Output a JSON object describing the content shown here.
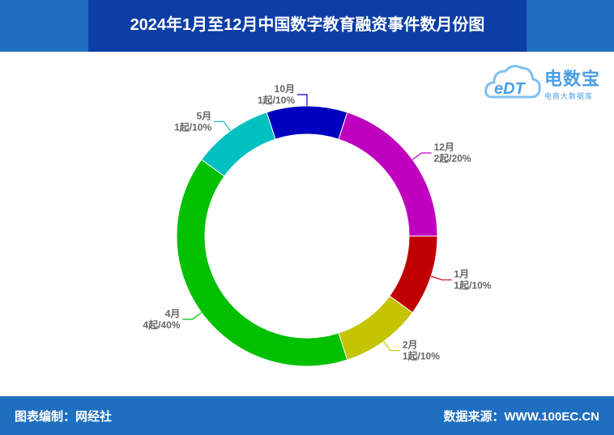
{
  "title": "2024年1月至12月中国数字教育融资事件数月份图",
  "footer": {
    "editor": "图表编制：网经社",
    "source": "数据来源：WWW.100EC.CN"
  },
  "logo": {
    "name": "电数宝",
    "sub": "电商大数据库",
    "mark": "eDT"
  },
  "chart_data": {
    "type": "pie",
    "donut": true,
    "title": "2024年1月至12月中国数字教育融资事件数月份图",
    "slices": [
      {
        "label": "12月",
        "value": 2,
        "percent": "20%",
        "color": "#bf00bf"
      },
      {
        "label": "1月",
        "value": 1,
        "percent": "10%",
        "color": "#c00000"
      },
      {
        "label": "2月",
        "value": 1,
        "percent": "10%",
        "color": "#c4c400"
      },
      {
        "label": "4月",
        "value": 4,
        "percent": "40%",
        "color": "#00c000"
      },
      {
        "label": "5月",
        "value": 1,
        "percent": "10%",
        "color": "#00c0c0"
      },
      {
        "label": "10月",
        "value": 1,
        "percent": "10%",
        "color": "#0000c0"
      }
    ],
    "unit": "起"
  }
}
